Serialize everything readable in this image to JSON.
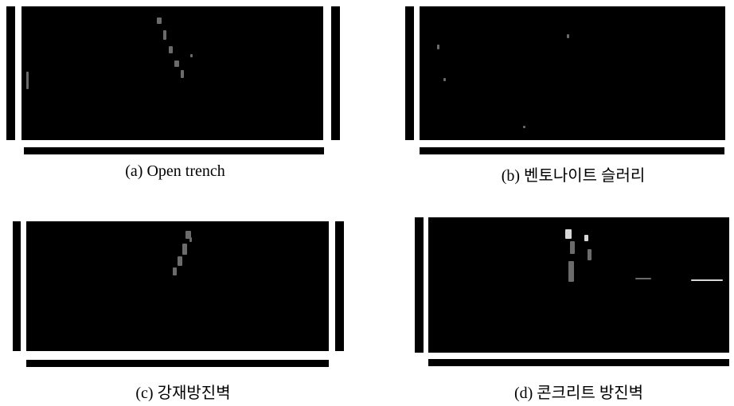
{
  "figure": {
    "panels": [
      {
        "id": "a",
        "caption": "(a) Open trench"
      },
      {
        "id": "b",
        "caption": "(b) 벤토나이트 슬러리"
      },
      {
        "id": "c",
        "caption": "(c) 강재방진벽"
      },
      {
        "id": "d",
        "caption": "(d) 콘크리트 방진벽"
      }
    ]
  }
}
